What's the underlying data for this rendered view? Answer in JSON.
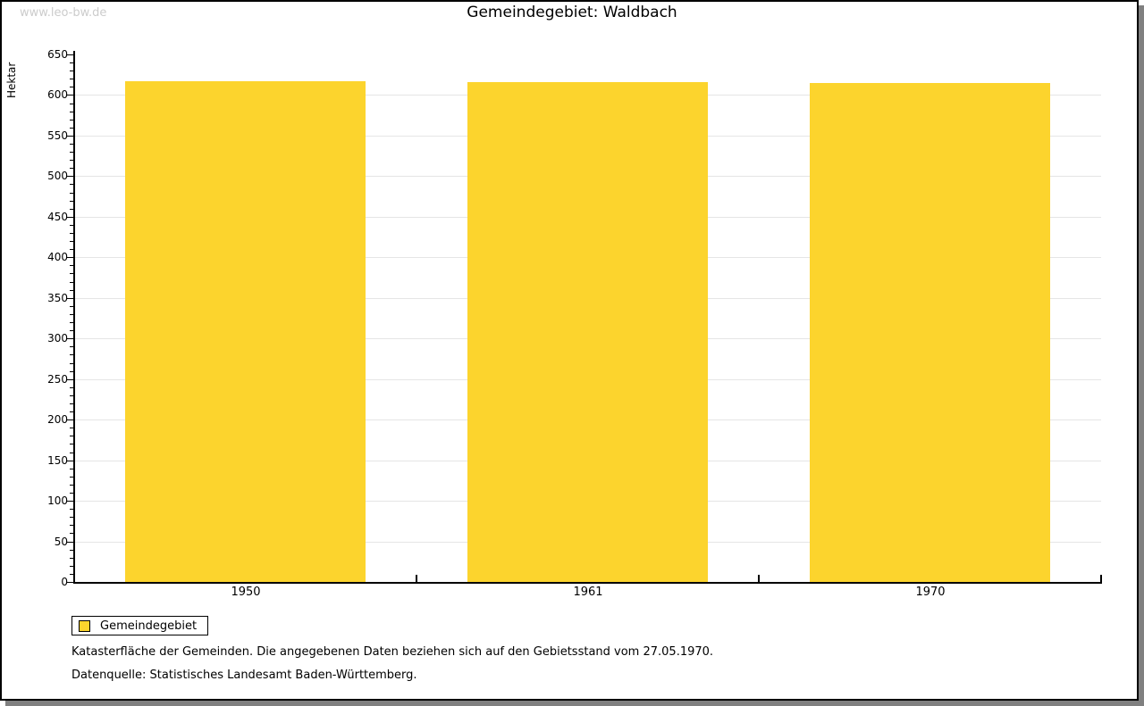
{
  "watermark": "www.leo-bw.de",
  "title": "Gemeindegebiet: Waldbach",
  "chart_data": {
    "type": "bar",
    "title": "Gemeindegebiet: Waldbach",
    "ylabel": "Hektar",
    "xlabel": "",
    "categories": [
      "1950",
      "1961",
      "1970"
    ],
    "series": [
      {
        "name": "Gemeindegebiet",
        "values": [
          617,
          616,
          615
        ]
      }
    ],
    "ylim": [
      0,
      650
    ],
    "y_major_step": 50,
    "y_minor_step": 10,
    "y_tick_labels": [
      "0",
      "50",
      "100",
      "150",
      "200",
      "250",
      "300",
      "350",
      "400",
      "450",
      "500",
      "550",
      "600",
      "650"
    ],
    "grid": true,
    "legend_position": "bottom-left",
    "bar_color": "#fcd42d"
  },
  "legend": {
    "items": [
      {
        "label": "Gemeindegebiet",
        "color": "#fcd42d"
      }
    ]
  },
  "footnotes": [
    "Katasterfläche der Gemeinden. Die angegebenen Daten beziehen sich auf den Gebietsstand vom 27.05.1970.",
    "Datenquelle: Statistisches Landesamt Baden-Württemberg."
  ],
  "colors": {
    "bar": "#fcd42d",
    "gridline": "#e5e5e5",
    "axis": "#000000",
    "watermark": "#cccccc",
    "frame_shadow": "#808080",
    "background": "#ffffff"
  }
}
